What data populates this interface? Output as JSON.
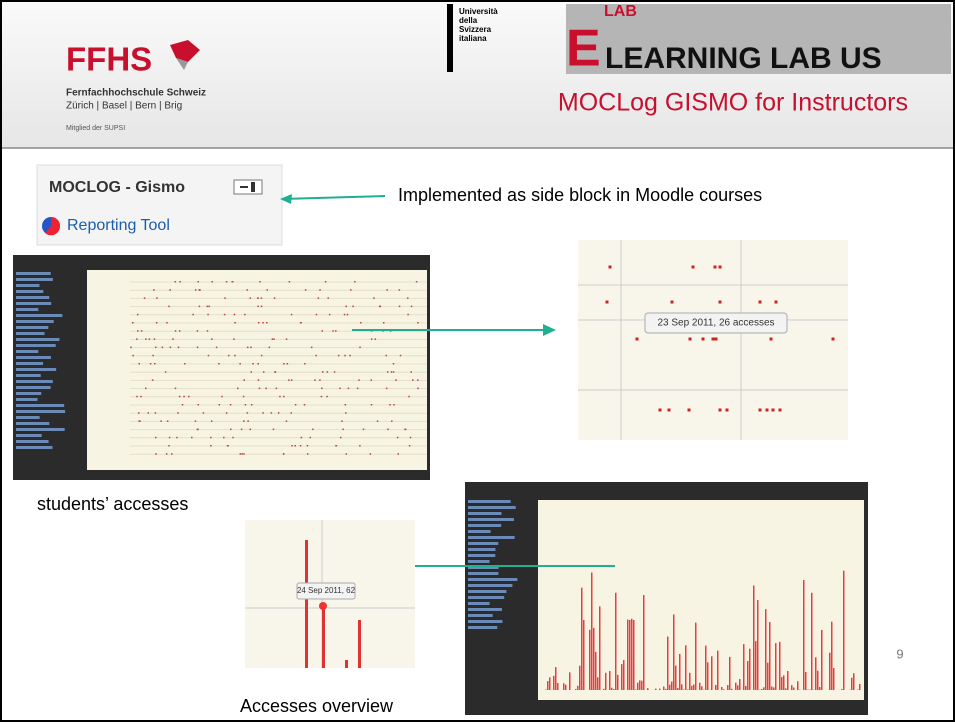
{
  "header": {
    "logo": "FFHS",
    "school": "Fernfachhochschule Schweiz",
    "cities": "Zürich | Basel | Bern | Brig",
    "member": "Mitglied der SUPSI",
    "usi": [
      "Università",
      "della",
      "Svizzera",
      "italiana"
    ],
    "lab_small": "LAB",
    "lab_letter": "E",
    "lab_text": "LEARNING LAB US",
    "title": "MOCLog GISMO for Instructors"
  },
  "block": {
    "title": "MOCLOG - Gismo",
    "link": "Reporting Tool"
  },
  "annotation": "Implemented as side block in Moodle courses",
  "zoom1_tooltip": "23 Sep 2011, 26 accesses",
  "caption1": "students’ accesses",
  "zoom2_tooltip": "24 Sep 2011, 62",
  "caption2": "Accesses overview",
  "page_number": "9"
}
